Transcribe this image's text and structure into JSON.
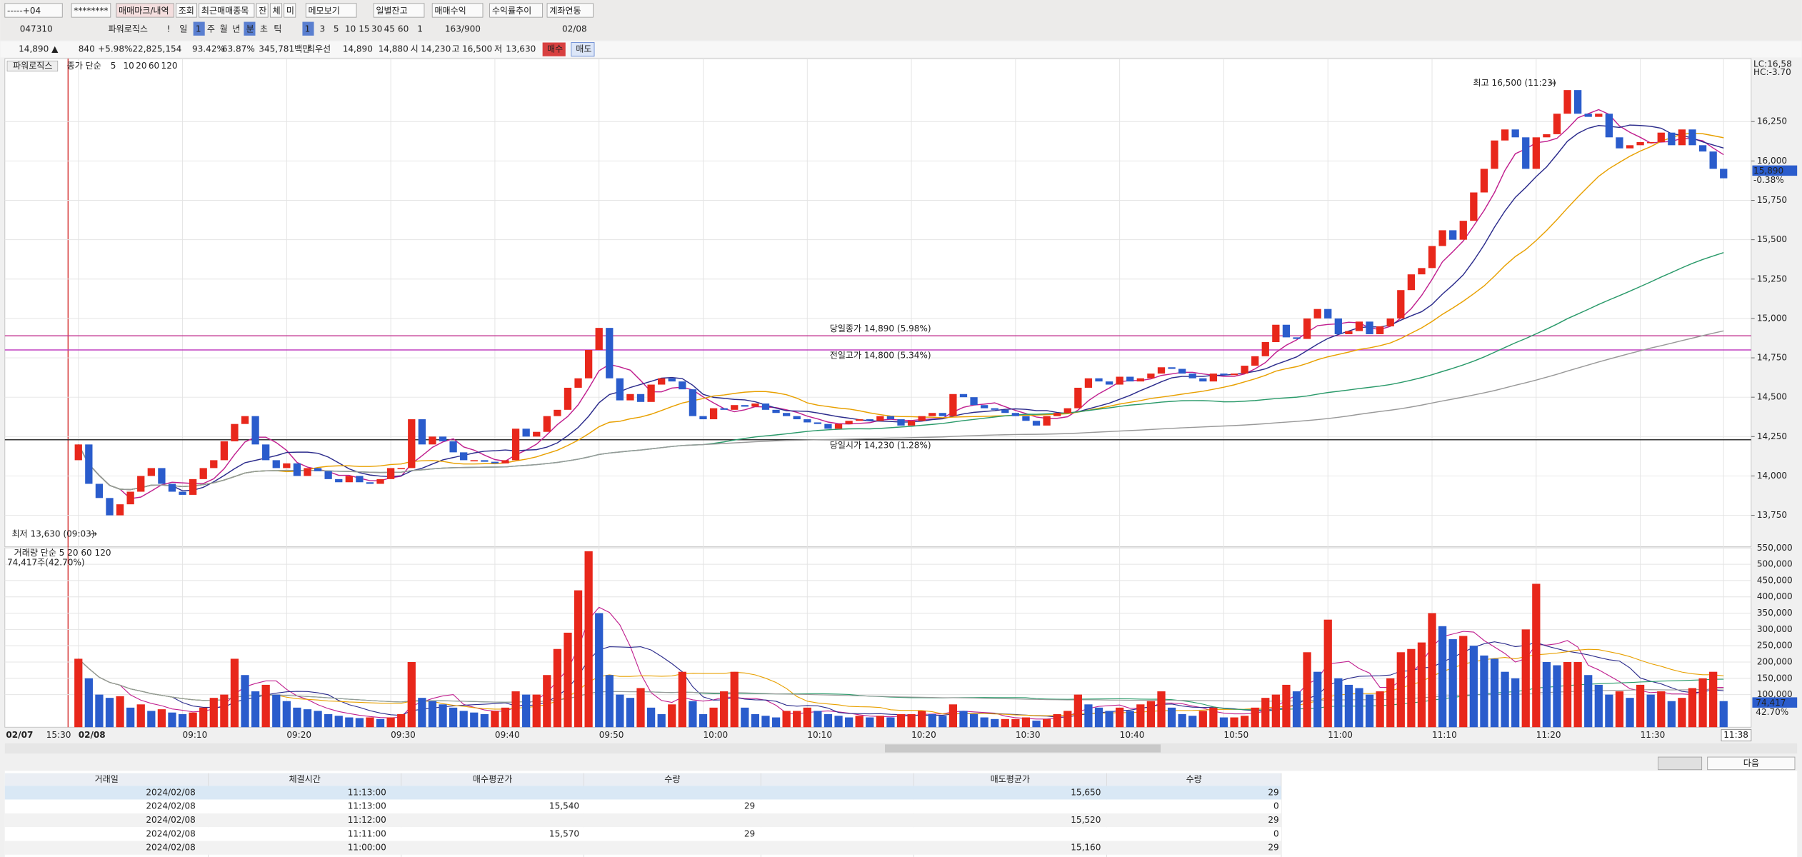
{
  "toolbar": {
    "row1": [
      "-----+04",
      "********",
      "매매마크/내역",
      "조회",
      "최근매매종목",
      "잔",
      "체",
      "미",
      "메모보기",
      "일별잔고",
      "매매수익",
      "수익률추이",
      "계좌연동"
    ],
    "row2": [
      "047310",
      "파워로직스",
      "!",
      "일",
      "1",
      "주",
      "월",
      "년",
      "분",
      "초",
      "틱",
      "1",
      "3",
      "5",
      "10",
      "15",
      "30",
      "45",
      "60",
      "1",
      "163/900",
      "02/08"
    ]
  },
  "quote": [
    "14,890 ▲",
    "840",
    "+5.98%",
    "22,825,154",
    "93.42%",
    "63.87%",
    "345,781백만",
    "최우선",
    "14,890",
    "14,880",
    "시",
    "14,230",
    "고",
    "16,500",
    "저",
    "13,630",
    "매수",
    "매도"
  ],
  "chart": {
    "legend": {
      "name": "파워로직스",
      "ma_title": "종가 단순"
    },
    "ma": {
      "periods": [
        5,
        10,
        20,
        60,
        120
      ],
      "colors": [
        "#c0208f",
        "#2c2c8c",
        "#e8a000",
        "#2a9a6a",
        "#999999"
      ]
    },
    "up_color": "#e8271b",
    "down_color": "#2a5ccc",
    "ylim": [
      13550,
      16650
    ],
    "yticks": [
      {
        "value": 13750,
        "label": "13,750"
      },
      {
        "value": 14000,
        "label": "14,000"
      },
      {
        "value": 14250,
        "label": "14,250"
      },
      {
        "value": 14500,
        "label": "14,500"
      },
      {
        "value": 14750,
        "label": "14,750"
      },
      {
        "value": 15000,
        "label": "15,000"
      },
      {
        "value": 15250,
        "label": "15,250"
      },
      {
        "value": 15500,
        "label": "15,500"
      },
      {
        "value": 15750,
        "label": "15,750"
      },
      {
        "value": 16000,
        "label": "16,000"
      },
      {
        "value": 16250,
        "label": "16,250"
      }
    ],
    "right_labels": [
      "LC:16,58",
      "HC:-3.70",
      "15,890",
      "-0.38%"
    ],
    "ref_lines": [
      {
        "label": "당일종가 14,890 (5.98%)",
        "value": 14890,
        "color": "#c0308f"
      },
      {
        "label": "전일고가 14,800 (5.34%)",
        "value": 14800,
        "color": "#c040c0"
      },
      {
        "label": "당일시가 14,230 (1.28%)",
        "value": 14230,
        "color": "#333333"
      }
    ],
    "high": {
      "label": "최고 16,500 (11:23)",
      "value": 16500
    },
    "low": {
      "label": "최저 13,630 (09:03)",
      "value": 13630
    },
    "prev_labels": [
      "02/07",
      "15:30"
    ],
    "categories": [
      "02/08",
      null,
      null,
      null,
      null,
      null,
      null,
      null,
      null,
      null,
      "09:10",
      null,
      null,
      null,
      null,
      null,
      null,
      null,
      null,
      null,
      "09:20",
      null,
      null,
      null,
      null,
      null,
      null,
      null,
      null,
      null,
      "09:30",
      null,
      null,
      null,
      null,
      null,
      null,
      null,
      null,
      null,
      "09:40",
      null,
      null,
      null,
      null,
      null,
      null,
      null,
      null,
      null,
      "09:50",
      null,
      null,
      null,
      null,
      null,
      null,
      null,
      null,
      null,
      "10:00",
      null,
      null,
      null,
      null,
      null,
      null,
      null,
      null,
      null,
      "10:10",
      null,
      null,
      null,
      null,
      null,
      null,
      null,
      null,
      null,
      "10:20",
      null,
      null,
      null,
      null,
      null,
      null,
      null,
      null,
      null,
      "10:30",
      null,
      null,
      null,
      null,
      null,
      null,
      null,
      null,
      null,
      "10:40",
      null,
      null,
      null,
      null,
      null,
      null,
      null,
      null,
      null,
      "10:50",
      null,
      null,
      null,
      null,
      null,
      null,
      null,
      null,
      null,
      "11:00",
      null,
      null,
      null,
      null,
      null,
      null,
      null,
      null,
      null,
      "11:10",
      null,
      null,
      null,
      null,
      null,
      null,
      null,
      null,
      null,
      "11:20",
      null,
      null,
      null,
      null,
      null,
      null,
      null,
      null,
      null,
      "11:30",
      null,
      null,
      null,
      null,
      null,
      null,
      null,
      "11:38"
    ],
    "candles": {
      "open": [
        14100,
        14200,
        13950,
        13860,
        13750,
        13820,
        13900,
        14000,
        14050,
        13950,
        13900,
        13880,
        13980,
        14050,
        14100,
        14220,
        14330,
        14380,
        14200,
        14100,
        14050,
        14080,
        14000,
        14050,
        14030,
        13980,
        13960,
        14000,
        13960,
        13950,
        13980,
        14050,
        14050,
        14360,
        14200,
        14250,
        14220,
        14150,
        14100,
        14100,
        14090,
        14080,
        14100,
        14300,
        14250,
        14280,
        14380,
        14420,
        14560,
        14620,
        14800,
        14940,
        14620,
        14480,
        14520,
        14470,
        14580,
        14620,
        14600,
        14550,
        14380,
        14360,
        14430,
        14420,
        14450,
        14440,
        14460,
        14420,
        14400,
        14380,
        14360,
        14340,
        14330,
        14300,
        14330,
        14350,
        14360,
        14350,
        14380,
        14360,
        14320,
        14350,
        14380,
        14400,
        14380,
        14520,
        14500,
        14450,
        14430,
        14420,
        14400,
        14380,
        14350,
        14320,
        14380,
        14400,
        14430,
        14560,
        14620,
        14600,
        14580,
        14630,
        14600,
        14620,
        14650,
        14690,
        14680,
        14650,
        14620,
        14600,
        14650,
        14640,
        14650,
        14700,
        14760,
        14850,
        14960,
        14880,
        14870,
        15000,
        15060,
        15000,
        14900,
        14920,
        14980,
        14900,
        14950,
        15000,
        15180,
        15280,
        15320,
        15460,
        15560,
        15500,
        15620,
        15800,
        15950,
        16130,
        16200,
        16150,
        15950,
        16150,
        16170,
        16300,
        16450,
        16300,
        16280,
        16300,
        16150,
        16080,
        16100,
        16120,
        16120,
        16180,
        16100,
        16200,
        16100,
        16060,
        15950
      ],
      "close": [
        14200,
        13950,
        13860,
        13750,
        13820,
        13900,
        14000,
        14050,
        13950,
        13900,
        13880,
        13980,
        14050,
        14100,
        14220,
        14330,
        14380,
        14200,
        14100,
        14050,
        14080,
        14000,
        14050,
        14030,
        13980,
        13960,
        14000,
        13960,
        13950,
        13980,
        14050,
        14050,
        14360,
        14200,
        14250,
        14220,
        14150,
        14100,
        14100,
        14090,
        14080,
        14100,
        14300,
        14250,
        14280,
        14380,
        14420,
        14560,
        14620,
        14800,
        14940,
        14620,
        14480,
        14520,
        14470,
        14580,
        14620,
        14600,
        14550,
        14380,
        14360,
        14430,
        14420,
        14450,
        14440,
        14460,
        14420,
        14400,
        14380,
        14360,
        14340,
        14330,
        14300,
        14330,
        14350,
        14360,
        14350,
        14380,
        14360,
        14320,
        14350,
        14380,
        14400,
        14380,
        14520,
        14500,
        14450,
        14430,
        14420,
        14400,
        14380,
        14350,
        14320,
        14380,
        14400,
        14430,
        14560,
        14620,
        14600,
        14580,
        14630,
        14600,
        14620,
        14650,
        14690,
        14680,
        14650,
        14620,
        14600,
        14650,
        14640,
        14650,
        14700,
        14760,
        14850,
        14960,
        14880,
        14870,
        15000,
        15060,
        15000,
        14900,
        14920,
        14980,
        14900,
        14950,
        15000,
        15180,
        15280,
        15320,
        15460,
        15560,
        15500,
        15620,
        15800,
        15950,
        16130,
        16200,
        16150,
        15950,
        16150,
        16170,
        16300,
        16450,
        16300,
        16280,
        16300,
        16150,
        16080,
        16100,
        16120,
        16120,
        16180,
        16100,
        16200,
        16100,
        16060,
        15950,
        15890
      ]
    },
    "volume": {
      "legend": "거래량 단순 5 20 60 120",
      "caption": "74,417주(42.70%)",
      "ylim": [
        0,
        550000
      ],
      "yticks": [
        {
          "value": 100000,
          "label": "100,000"
        },
        {
          "value": 150000,
          "label": "150,000"
        },
        {
          "value": 200000,
          "label": "200,000"
        },
        {
          "value": 250000,
          "label": "250,000"
        },
        {
          "value": 300000,
          "label": "300,000"
        },
        {
          "value": 350000,
          "label": "350,000"
        },
        {
          "value": 400000,
          "label": "400,000"
        },
        {
          "value": 450000,
          "label": "450,000"
        },
        {
          "value": 500000,
          "label": "500,000"
        },
        {
          "value": 550000,
          "label": "550,000"
        }
      ],
      "right_labels": [
        "74,417",
        "42.70%"
      ],
      "values": [
        210000,
        150000,
        100000,
        90000,
        95000,
        60000,
        70000,
        50000,
        55000,
        45000,
        40000,
        45000,
        60000,
        90000,
        100000,
        210000,
        160000,
        110000,
        130000,
        100000,
        80000,
        60000,
        55000,
        50000,
        40000,
        35000,
        30000,
        28000,
        30000,
        25000,
        30000,
        40000,
        200000,
        90000,
        80000,
        70000,
        60000,
        50000,
        45000,
        40000,
        50000,
        60000,
        110000,
        100000,
        100000,
        160000,
        240000,
        290000,
        420000,
        540000,
        350000,
        160000,
        100000,
        90000,
        120000,
        60000,
        40000,
        70000,
        170000,
        80000,
        40000,
        60000,
        110000,
        170000,
        60000,
        40000,
        35000,
        30000,
        50000,
        50000,
        60000,
        50000,
        40000,
        35000,
        30000,
        35000,
        30000,
        35000,
        30000,
        40000,
        40000,
        50000,
        40000,
        35000,
        70000,
        50000,
        40000,
        30000,
        25000,
        25000,
        25000,
        30000,
        20000,
        25000,
        40000,
        50000,
        100000,
        70000,
        60000,
        50000,
        60000,
        50000,
        70000,
        80000,
        110000,
        60000,
        40000,
        35000,
        50000,
        60000,
        30000,
        30000,
        35000,
        60000,
        90000,
        100000,
        130000,
        110000,
        230000,
        170000,
        330000,
        150000,
        130000,
        120000,
        100000,
        110000,
        150000,
        230000,
        240000,
        260000,
        350000,
        310000,
        270000,
        280000,
        250000,
        220000,
        210000,
        170000,
        150000,
        300000,
        440000,
        200000,
        190000,
        200000,
        200000,
        160000,
        130000,
        100000,
        110000,
        90000,
        130000,
        100000,
        110000,
        80000,
        90000,
        120000,
        150000,
        170000,
        80000
      ]
    }
  },
  "table": {
    "header": [
      "거래일",
      "체결시간",
      "매수평균가",
      "수량",
      "매도평균가",
      "수량"
    ],
    "rows": [
      [
        "2024/02/08",
        "11:13:00",
        null,
        null,
        "15,650",
        "29"
      ],
      [
        "2024/02/08",
        "11:13:00",
        "15,540",
        "29",
        null,
        "0"
      ],
      [
        "2024/02/08",
        "11:12:00",
        null,
        null,
        "15,520",
        "29"
      ],
      [
        "2024/02/08",
        "11:11:00",
        "15,570",
        "29",
        null,
        "0"
      ],
      [
        "2024/02/08",
        "11:00:00",
        null,
        null,
        "15,160",
        "29"
      ]
    ],
    "next": "다음"
  }
}
